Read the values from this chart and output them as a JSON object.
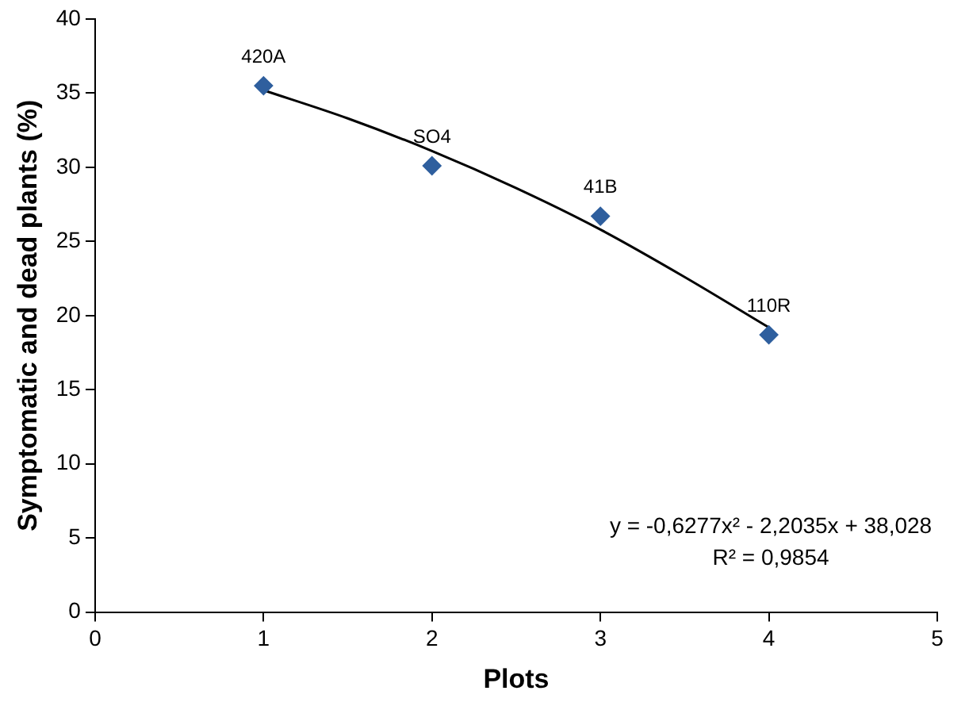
{
  "chart_data": {
    "type": "scatter",
    "xlabel": "Plots",
    "ylabel": "Symptomatic and dead plants (%)",
    "xlim": [
      0,
      5
    ],
    "xticks": [
      0,
      1,
      2,
      3,
      4,
      5
    ],
    "ylim": [
      0,
      40
    ],
    "yticks": [
      0,
      5,
      10,
      15,
      20,
      25,
      30,
      35,
      40
    ],
    "grid": false,
    "legend": false,
    "series": [
      {
        "marker": "diamond",
        "color": "#2f5f9e",
        "x": [
          1,
          2,
          3,
          4
        ],
        "values": [
          35.5,
          30.1,
          26.7,
          18.7
        ]
      },
      {
        "type": "line",
        "marker": "none",
        "color": "#000000",
        "x": [
          1,
          1.5,
          2,
          2.5,
          3,
          3.5,
          4
        ],
        "values": [
          35.2,
          33.3,
          31.1,
          28.6,
          25.8,
          22.6,
          19.2
        ]
      }
    ],
    "annotations": [
      {
        "text": "420A",
        "x": 1,
        "y": 35.5
      },
      {
        "text": "SO4",
        "x": 2,
        "y": 30.1
      },
      {
        "text": "41B",
        "x": 3,
        "y": 26.7
      },
      {
        "text": "110R",
        "x": 4,
        "y": 18.7
      },
      "y = -0,6277x² - 2,2035x + 38,028",
      "R² = 0,9854"
    ]
  }
}
